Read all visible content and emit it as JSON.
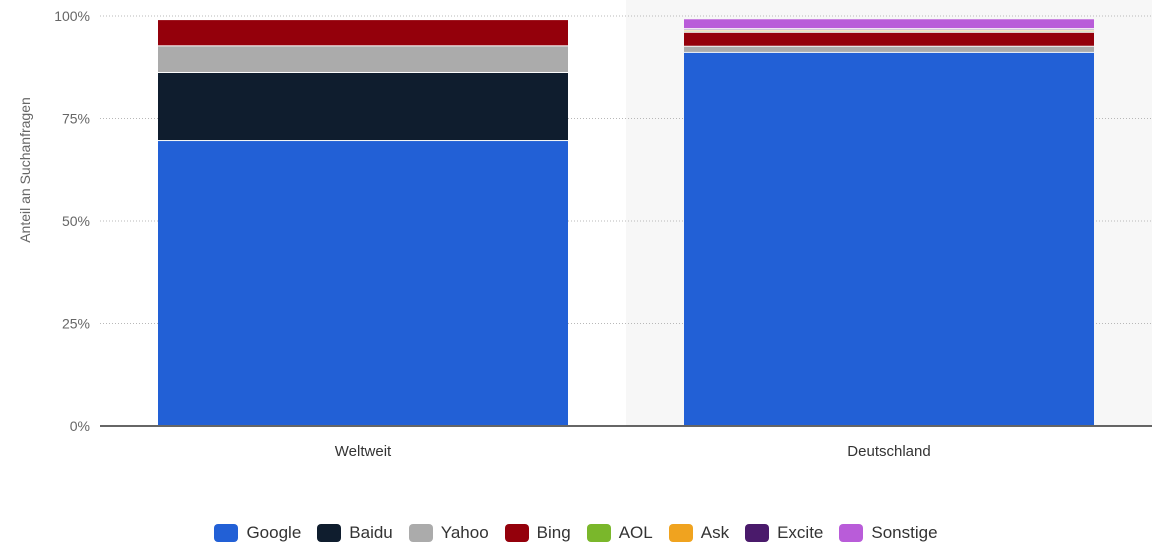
{
  "chart_data": {
    "type": "bar",
    "stacked": true,
    "ylabel": "Anteil an Suchanfragen",
    "xlabel": "",
    "ylim": [
      0,
      100
    ],
    "yticks": [
      "0%",
      "25%",
      "50%",
      "75%",
      "100%"
    ],
    "grid": true,
    "legend_position": "bottom",
    "highlighted_category": "Deutschland",
    "categories": [
      "Weltweit",
      "Deutschland"
    ],
    "series": [
      {
        "name": "Google",
        "color": "#2260d6",
        "values": [
          69.5,
          91.0
        ]
      },
      {
        "name": "Baidu",
        "color": "#0f1d2e",
        "values": [
          16.6,
          0.0
        ]
      },
      {
        "name": "Yahoo",
        "color": "#ababab",
        "values": [
          6.5,
          1.5
        ]
      },
      {
        "name": "Bing",
        "color": "#94000b",
        "values": [
          6.4,
          3.4
        ]
      },
      {
        "name": "AOL",
        "color": "#7ab72b",
        "values": [
          0.0,
          0.3
        ]
      },
      {
        "name": "Ask",
        "color": "#f0a31f",
        "values": [
          0.0,
          0.3
        ]
      },
      {
        "name": "Excite",
        "color": "#4a1a6b",
        "values": [
          0.0,
          0.3
        ]
      },
      {
        "name": "Sonstige",
        "color": "#b95cd9",
        "values": [
          0.0,
          2.4
        ]
      }
    ]
  }
}
